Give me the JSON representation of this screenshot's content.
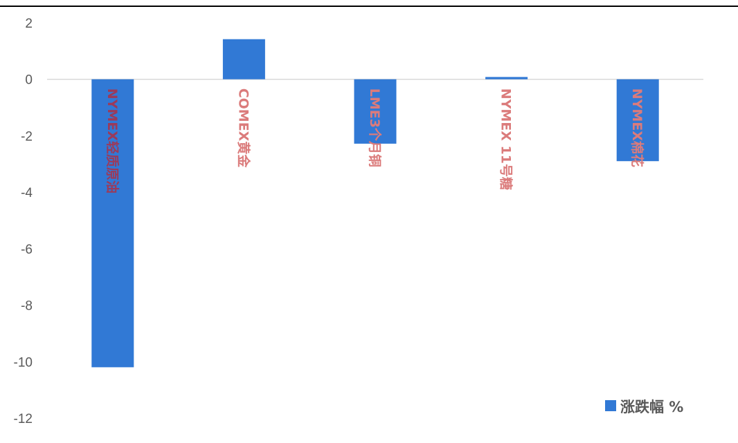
{
  "chart_data": {
    "type": "bar",
    "categories": [
      "NYMEX轻质原油",
      "COMEX黄金",
      "LME3个月铜",
      "NYMEX 11号糖",
      "NYMEX棉花"
    ],
    "series": [
      {
        "name": "涨跌幅 %",
        "values": [
          -10.2,
          1.42,
          -2.28,
          0.08,
          -2.9
        ],
        "color": "#3179D5"
      }
    ],
    "ylim": [
      -12,
      2
    ],
    "yticks": [
      2,
      0,
      -2,
      -4,
      -6,
      -8,
      -10,
      -12
    ],
    "category_label_color": "#DB7B7B",
    "category_label_color_on_bar": "#9B3A5A",
    "grid": false,
    "legend_position": "bottom-right"
  }
}
